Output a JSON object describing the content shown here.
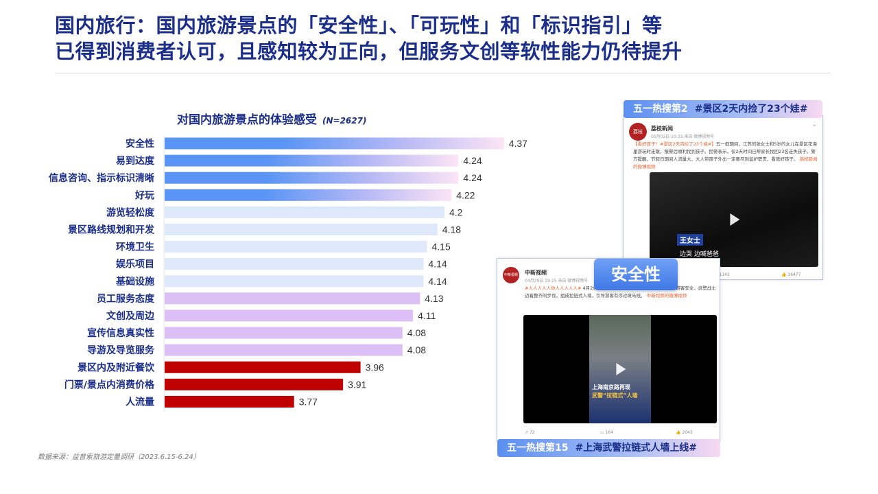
{
  "slide": {
    "title_line1": "国内旅行：国内旅游景点的「安全性」、「可玩性」和「标识指引」等",
    "title_line2": "已得到消费者认可，且感知较为正向，但服务文创等软性能力仍待提升",
    "source": "数据来源：益普索旅游定量调研（2023.6.15-6.24）"
  },
  "chart_data": {
    "type": "bar",
    "orientation": "horizontal",
    "title": "对国内旅游景点的体验感受",
    "subtitle": "(N=2627)",
    "categories": [
      "安全性",
      "易到达度",
      "信息咨询、指示标识清晰",
      "好玩",
      "游览轻松度",
      "景区路线规划和开发",
      "环境卫生",
      "娱乐项目",
      "基础设施",
      "员工服务态度",
      "文创及周边",
      "宣传信息真实性",
      "导游及导览服务",
      "景区内及附近餐饮",
      "门票/景点内消费价格",
      "人流量"
    ],
    "values": [
      4.37,
      4.24,
      4.24,
      4.22,
      4.2,
      4.18,
      4.15,
      4.14,
      4.14,
      4.13,
      4.11,
      4.08,
      4.08,
      3.96,
      3.91,
      3.77
    ],
    "value_labels": [
      "4.37",
      "4.24",
      "4.24",
      "4.22",
      "4.2",
      "4.18",
      "4.15",
      "4.14",
      "4.14",
      "4.13",
      "4.11",
      "4.08",
      "4.08",
      "3.96",
      "3.91",
      "3.77"
    ],
    "groups": [
      "top",
      "top",
      "top",
      "top",
      "light",
      "light",
      "light",
      "light",
      "light",
      "purple",
      "purple",
      "purple",
      "purple",
      "red",
      "red",
      "red"
    ],
    "colors": {
      "top_start": "#5a95f5",
      "top_end": "#fce4f5",
      "light": "#dde8fb",
      "purple": "#dcbff5",
      "red": "#c00000"
    },
    "xlim": [
      3.4,
      4.4
    ],
    "grid": false,
    "legend": "none"
  },
  "posts": [
    {
      "header_prefix": "五一热搜第2",
      "header_tag": "#景区2天内捡了23个娃#",
      "user": "荔枝新闻",
      "avatar_text": "荔枝",
      "meta": "05月02日 20:33 来自 微博视频号",
      "body_tag": "【看好孩子！#景区2天内捡了23个娃#】",
      "body": "五一假期间，江苏的张女士和5岁的女儿在景区花海里游玩时走散，报警后顺利找到孩子。民警表示，仅2天时间已帮家长找回23名走失孩子。警方提醒，节假日期间人流量大，大人带孩子外出一定要尽到监护职责，看管好孩子。",
      "link": "荔枝新闻的微博视频",
      "video_caption_1": "王女士",
      "video_caption_2": "边哭 边喊爸爸",
      "comments": "1142",
      "likes": "36477"
    },
    {
      "header_prefix": "五一热搜第15",
      "header_tag": "#上海武警拉链式人墙上线#",
      "user": "中新视频",
      "avatar_text": "中新视频",
      "meta": "04月29日 19:25 来自 微博视频号",
      "body_tag": "#人人人人人你人人人人人#",
      "body": "4月29日，上海南京路步行街人山人海。为保障游客安全，武警战士迈着整齐的步伐，组成拉链式人墙，引导游客有序过斑马线。",
      "link": "中新视频的微博视频",
      "video_caption_1": "上海南京路再现",
      "video_caption_2": "武警“拉链式”人墙",
      "shares": "72",
      "comments": "164",
      "likes": "2043"
    }
  ],
  "badge": "安全性"
}
